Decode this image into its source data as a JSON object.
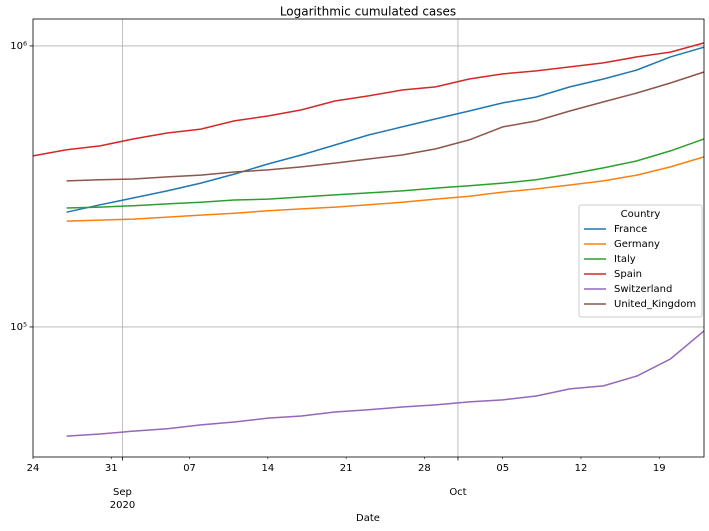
{
  "chart_data": {
    "type": "line",
    "title": "Logarithmic cumulated cases",
    "xlabel": "Date",
    "x": [
      "2020-08-24",
      "2020-08-27",
      "2020-08-30",
      "2020-09-02",
      "2020-09-05",
      "2020-09-08",
      "2020-09-11",
      "2020-09-14",
      "2020-09-17",
      "2020-09-20",
      "2020-09-23",
      "2020-09-26",
      "2020-09-29",
      "2020-10-02",
      "2020-10-05",
      "2020-10-08",
      "2020-10-11",
      "2020-10-14",
      "2020-10-17",
      "2020-10-20",
      "2020-10-23"
    ],
    "series": [
      {
        "name": "France",
        "color": "#1f77b4",
        "values": [
          null,
          256000,
          272000,
          288000,
          305000,
          325000,
          350000,
          380000,
          409000,
          444000,
          482000,
          515000,
          550000,
          587000,
          627000,
          658000,
          715000,
          763000,
          821000,
          914000,
          990000
        ]
      },
      {
        "name": "Germany",
        "color": "#ff7f0e",
        "values": [
          null,
          238000,
          240000,
          242000,
          246000,
          250000,
          254000,
          259000,
          263000,
          267000,
          272000,
          278000,
          285000,
          292000,
          302000,
          310000,
          320000,
          331000,
          347000,
          371000,
          403000
        ]
      },
      {
        "name": "Italy",
        "color": "#2ca02c",
        "values": [
          null,
          265000,
          267000,
          270000,
          274000,
          278000,
          283000,
          285000,
          290000,
          295000,
          300000,
          305000,
          312000,
          318000,
          325000,
          334000,
          350000,
          368000,
          390000,
          423000,
          467000
        ]
      },
      {
        "name": "Spain",
        "color": "#d62728",
        "values": [
          406000,
          427000,
          441000,
          467000,
          490000,
          506000,
          541000,
          563000,
          592000,
          637000,
          664000,
          697000,
          715000,
          763000,
          795000,
          815000,
          842000,
          870000,
          914000,
          951000,
          1025000
        ]
      },
      {
        "name": "Switzerland",
        "color": "#9467bd",
        "values": [
          null,
          40900,
          41600,
          42600,
          43400,
          44800,
          45900,
          47400,
          48200,
          49800,
          50700,
          51900,
          52800,
          54100,
          55000,
          56800,
          60200,
          61700,
          66900,
          76900,
          96800
        ]
      },
      {
        "name": "United_Kingdom",
        "color": "#8c564b",
        "values": [
          null,
          331000,
          334000,
          336000,
          342000,
          347000,
          356000,
          362000,
          371000,
          383000,
          396000,
          409000,
          430000,
          463000,
          515000,
          541000,
          587000,
          632000,
          680000,
          738000,
          808000
        ]
      }
    ],
    "xlim": [
      "2020-08-24",
      "2020-10-23"
    ],
    "xticks": [
      {
        "value": "2020-08-24",
        "label": "24"
      },
      {
        "value": "2020-08-31",
        "label": "31"
      },
      {
        "value": "2020-09-07",
        "label": "07"
      },
      {
        "value": "2020-09-14",
        "label": "14"
      },
      {
        "value": "2020-09-21",
        "label": "21"
      },
      {
        "value": "2020-09-28",
        "label": "28"
      },
      {
        "value": "2020-10-05",
        "label": "05"
      },
      {
        "value": "2020-10-12",
        "label": "12"
      },
      {
        "value": "2020-10-19",
        "label": "19"
      }
    ],
    "xticks_month": [
      {
        "value": "2020-09-01",
        "label": "Sep\n2020"
      },
      {
        "value": "2020-10-01",
        "label": "Oct"
      }
    ],
    "ylim": [
      34450,
      1247000
    ],
    "log_y": true,
    "yticks": [
      {
        "value": 100000,
        "label": "10⁵"
      },
      {
        "value": 1000000,
        "label": "10⁶"
      }
    ],
    "grid": true,
    "legend_title": "Country",
    "legend_loc": "center right"
  }
}
